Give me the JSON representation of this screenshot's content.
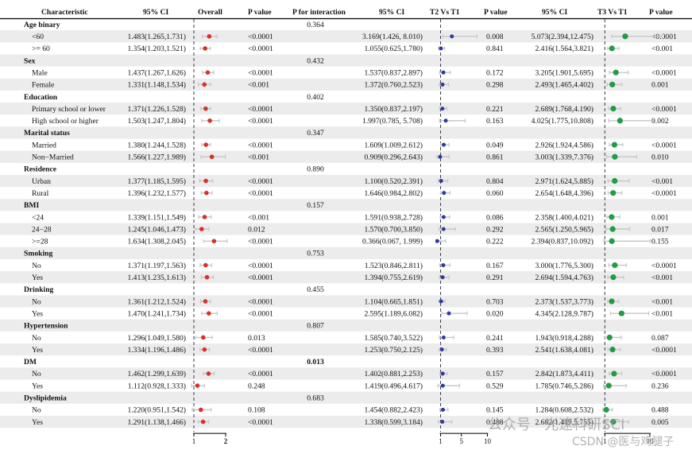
{
  "chart_data": {
    "type": "forest",
    "title": "",
    "headers": {
      "characteristic": "Characteristic",
      "ci_overall": "95% CI",
      "overall": "Overall",
      "p_overall": "P value",
      "p_interaction": "P for interaction",
      "ci_t2": "95% CI",
      "t2": "T2 Vs T1",
      "p_t2": "P value",
      "ci_t3": "95% CI",
      "t3": "T3 Vs T1",
      "p_t3": "P value"
    },
    "axes": {
      "overall": {
        "reference": 1,
        "ticks": [
          1,
          2
        ],
        "range": [
          0.85,
          2.4
        ]
      },
      "t2": {
        "reference": 1,
        "ticks": [
          1,
          5,
          10
        ],
        "range": [
          0,
          11
        ]
      },
      "t3": {
        "reference": 1,
        "ticks": [
          1,
          10
        ],
        "range": [
          0,
          13.5
        ]
      }
    },
    "colors": {
      "overall": "#d9302c",
      "t2": "#2f3a9c",
      "t3": "#1f9c46",
      "ci": "#c6c6cc",
      "reference": "#3a3a4a",
      "stripe": "#ececec"
    },
    "rows": [
      {
        "label": "Age binary",
        "group": true,
        "p_interaction": "0.364"
      },
      {
        "label": "<60",
        "ci": "1.483(1.265,1.731)",
        "est": 1.483,
        "lo": 1.265,
        "hi": 1.731,
        "p": "<0.0001",
        "t2_ci": "3.169(1.426, 8.010)",
        "t2_est": 3.169,
        "t2_lo": 1.426,
        "t2_hi": 8.01,
        "t2_p": "0.008",
        "t3_ci": "5.073(2.394,12.475)",
        "t3_est": 5.073,
        "t3_lo": 2.394,
        "t3_hi": 12.475,
        "t3_p": "<0.0001"
      },
      {
        "label": ">= 60",
        "ci": "1.354(1.203,1.521)",
        "est": 1.354,
        "lo": 1.203,
        "hi": 1.521,
        "p": "<0.0001",
        "t2_ci": "1.055(0.625,1.780)",
        "t2_est": 1.055,
        "t2_lo": 0.625,
        "t2_hi": 1.78,
        "t2_p": "0.841",
        "t3_ci": "2.416(1.564,3.821)",
        "t3_est": 2.416,
        "t3_lo": 1.564,
        "t3_hi": 3.821,
        "t3_p": "<0.001"
      },
      {
        "label": "Sex",
        "group": true,
        "p_interaction": "0.432"
      },
      {
        "label": "Male",
        "ci": "1.437(1.267,1.626)",
        "est": 1.437,
        "lo": 1.267,
        "hi": 1.626,
        "p": "<0.0001",
        "t2_ci": "1.537(0.837,2.897)",
        "t2_est": 1.537,
        "t2_lo": 0.837,
        "t2_hi": 2.897,
        "t2_p": "0.172",
        "t3_ci": "3.205(1.901,5.695)",
        "t3_est": 3.205,
        "t3_lo": 1.901,
        "t3_hi": 5.695,
        "t3_p": "<0.0001"
      },
      {
        "label": "Female",
        "ci": "1.331(1.148,1.534)",
        "est": 1.331,
        "lo": 1.148,
        "hi": 1.534,
        "p": "<0.001",
        "t2_ci": "1.372(0.760,2.523)",
        "t2_est": 1.372,
        "t2_lo": 0.76,
        "t2_hi": 2.523,
        "t2_p": "0.298",
        "t3_ci": "2.493(1.465,4.402)",
        "t3_est": 2.493,
        "t3_lo": 1.465,
        "t3_hi": 4.402,
        "t3_p": "0.001"
      },
      {
        "label": "Education",
        "group": true,
        "p_interaction": "0.402"
      },
      {
        "label": "Primary school or lower",
        "ci": "1.371(1.226,1.528)",
        "est": 1.371,
        "lo": 1.226,
        "hi": 1.528,
        "p": "<0.0001",
        "t2_ci": "1.350(0.837,2.197)",
        "t2_est": 1.35,
        "t2_lo": 0.837,
        "t2_hi": 2.197,
        "t2_p": "0.221",
        "t3_ci": "2.689(1.768,4.190)",
        "t3_est": 2.689,
        "t3_lo": 1.768,
        "t3_hi": 4.19,
        "t3_p": "<0.0001"
      },
      {
        "label": "High school or higher",
        "ci": "1.503(1.247,1.804)",
        "est": 1.503,
        "lo": 1.247,
        "hi": 1.804,
        "p": "<0.0001",
        "t2_ci": "1.997(0.785, 5.708)",
        "t2_est": 1.997,
        "t2_lo": 0.785,
        "t2_hi": 5.708,
        "t2_p": "0.163",
        "t3_ci": "4.025(1.775,10.808)",
        "t3_est": 4.025,
        "t3_lo": 1.775,
        "t3_hi": 10.808,
        "t3_p": "0.002"
      },
      {
        "label": "Marital status",
        "group": true,
        "p_interaction": "0.347"
      },
      {
        "label": "Married",
        "ci": "1.380(1.244,1.528)",
        "est": 1.38,
        "lo": 1.244,
        "hi": 1.528,
        "p": "<0.0001",
        "t2_ci": "1.609(1.009,2.612)",
        "t2_est": 1.609,
        "t2_lo": 1.009,
        "t2_hi": 2.612,
        "t2_p": "0.049",
        "t3_ci": "2.926(1.924,4.586)",
        "t3_est": 2.926,
        "t3_lo": 1.924,
        "t3_hi": 4.586,
        "t3_p": "<0.0001"
      },
      {
        "label": "Non−Married",
        "ci": "1.566(1.227,1.989)",
        "est": 1.566,
        "lo": 1.227,
        "hi": 1.989,
        "p": "<0.001",
        "t2_ci": "0.909(0.296,2.643)",
        "t2_est": 0.909,
        "t2_lo": 0.296,
        "t2_hi": 2.643,
        "t2_p": "0.861",
        "t3_ci": "3.003(1.339,7.376)",
        "t3_est": 3.003,
        "t3_lo": 1.339,
        "t3_hi": 7.376,
        "t3_p": "0.010"
      },
      {
        "label": "Residence",
        "group": true,
        "p_interaction": "0.890"
      },
      {
        "label": "Urban",
        "ci": "1.377(1.185,1.595)",
        "est": 1.377,
        "lo": 1.185,
        "hi": 1.595,
        "p": "<0.0001",
        "t2_ci": "1.100(0.520,2.391)",
        "t2_est": 1.1,
        "t2_lo": 0.52,
        "t2_hi": 2.391,
        "t2_p": "0.804",
        "t3_ci": "2.971(1.624,5.885)",
        "t3_est": 2.971,
        "t3_lo": 1.624,
        "t3_hi": 5.885,
        "t3_p": "<0.001"
      },
      {
        "label": "Rural",
        "ci": "1.396(1.232,1.577)",
        "est": 1.396,
        "lo": 1.232,
        "hi": 1.577,
        "p": "<0.0001",
        "t2_ci": "1.646(0.984,2.802)",
        "t2_est": 1.646,
        "t2_lo": 0.984,
        "t2_hi": 2.802,
        "t2_p": "0.060",
        "t3_ci": "2.654(1.648,4.396)",
        "t3_est": 2.654,
        "t3_lo": 1.648,
        "t3_hi": 4.396,
        "t3_p": "<0.0001"
      },
      {
        "label": "BMI",
        "group": true,
        "p_interaction": "0.157"
      },
      {
        "label": "<24",
        "ci": "1.339(1.151,1.549)",
        "est": 1.339,
        "lo": 1.151,
        "hi": 1.549,
        "p": "<0.001",
        "t2_ci": "1.591(0.938,2.728)",
        "t2_est": 1.591,
        "t2_lo": 0.938,
        "t2_hi": 2.728,
        "t2_p": "0.086",
        "t3_ci": "2.358(1.400,4.021)",
        "t3_est": 2.358,
        "t3_lo": 1.4,
        "t3_hi": 4.021,
        "t3_p": "0.001"
      },
      {
        "label": "24−28",
        "ci": "1.245(1.046,1.473)",
        "est": 1.245,
        "lo": 1.046,
        "hi": 1.473,
        "p": "0.012",
        "t2_ci": "1.570(0.700,3.850)",
        "t2_est": 1.57,
        "t2_lo": 0.7,
        "t2_hi": 3.85,
        "t2_p": "0.292",
        "t3_ci": "2.565(1.250,5.965)",
        "t3_est": 2.565,
        "t3_lo": 1.25,
        "t3_hi": 5.965,
        "t3_p": "0.017"
      },
      {
        "label": ">=28",
        "ci": "1.634(1.308,2.045)",
        "est": 1.634,
        "lo": 1.308,
        "hi": 2.045,
        "p": "<0.0001",
        "t2_ci": "0.366(0.067, 1.999)",
        "t2_est": 0.366,
        "t2_lo": 0.067,
        "t2_hi": 1.999,
        "t2_p": "0.222",
        "t3_ci": "2.394(0.837,10.092)",
        "t3_est": 2.394,
        "t3_lo": 0.837,
        "t3_hi": 10.092,
        "t3_p": "0.155"
      },
      {
        "label": "Smoking",
        "group": true,
        "p_interaction": "0.753"
      },
      {
        "label": "No",
        "ci": "1.371(1.197,1.563)",
        "est": 1.371,
        "lo": 1.197,
        "hi": 1.563,
        "p": "<0.0001",
        "t2_ci": "1.523(0.846,2.811)",
        "t2_est": 1.523,
        "t2_lo": 0.846,
        "t2_hi": 2.811,
        "t2_p": "0.167",
        "t3_ci": "3.000(1.776,5.300)",
        "t3_est": 3.0,
        "t3_lo": 1.776,
        "t3_hi": 5.3,
        "t3_p": "<0.0001"
      },
      {
        "label": "Yes",
        "ci": "1.413(1.235,1.613)",
        "est": 1.413,
        "lo": 1.235,
        "hi": 1.613,
        "p": "<0.0001",
        "t2_ci": "1.394(0.755,2.619)",
        "t2_est": 1.394,
        "t2_lo": 0.755,
        "t2_hi": 2.619,
        "t2_p": "0.291",
        "t3_ci": "2.694(1.594,4.763)",
        "t3_est": 2.694,
        "t3_lo": 1.594,
        "t3_hi": 4.763,
        "t3_p": "<0.001"
      },
      {
        "label": "Drinking",
        "group": true,
        "p_interaction": "0.455"
      },
      {
        "label": "No",
        "ci": "1.361(1.212,1.524)",
        "est": 1.361,
        "lo": 1.212,
        "hi": 1.524,
        "p": "<0.0001",
        "t2_ci": "1.104(0.665,1.851)",
        "t2_est": 1.104,
        "t2_lo": 0.665,
        "t2_hi": 1.851,
        "t2_p": "0.703",
        "t3_ci": "2.373(1.537,3.773)",
        "t3_est": 2.373,
        "t3_lo": 1.537,
        "t3_hi": 3.773,
        "t3_p": "<0.001"
      },
      {
        "label": "Yes",
        "ci": "1.470(1.241,1.734)",
        "est": 1.47,
        "lo": 1.241,
        "hi": 1.734,
        "p": "<0.0001",
        "t2_ci": "2.595(1.189,6.082)",
        "t2_est": 2.595,
        "t2_lo": 1.189,
        "t2_hi": 6.082,
        "t2_p": "0.020",
        "t3_ci": "4.345(2.128,9.787)",
        "t3_est": 4.345,
        "t3_lo": 2.128,
        "t3_hi": 9.787,
        "t3_p": "<0.001"
      },
      {
        "label": "Hypertension",
        "group": true,
        "p_interaction": "0.807"
      },
      {
        "label": "No",
        "ci": "1.296(1.049,1.580)",
        "est": 1.296,
        "lo": 1.049,
        "hi": 1.58,
        "p": "0.013",
        "t2_ci": "1.585(0.740,3.522)",
        "t2_est": 1.585,
        "t2_lo": 0.74,
        "t2_hi": 3.522,
        "t2_p": "0.241",
        "t3_ci": "1.943(0.918,4.288)",
        "t3_est": 1.943,
        "t3_lo": 0.918,
        "t3_hi": 4.288,
        "t3_p": "0.087"
      },
      {
        "label": "Yes",
        "ci": "1.334(1.196,1.486)",
        "est": 1.334,
        "lo": 1.196,
        "hi": 1.486,
        "p": "<0.0001",
        "t2_ci": "1.253(0.750,2.125)",
        "t2_est": 1.253,
        "t2_lo": 0.75,
        "t2_hi": 2.125,
        "t2_p": "0.393",
        "t3_ci": "2.541(1.638,4.081)",
        "t3_est": 2.541,
        "t3_lo": 1.638,
        "t3_hi": 4.081,
        "t3_p": "<0.0001"
      },
      {
        "label": "DM",
        "group": true,
        "p_interaction": "0.013",
        "p_bold": true
      },
      {
        "label": "No",
        "ci": "1.462(1.299,1.639)",
        "est": 1.462,
        "lo": 1.299,
        "hi": 1.639,
        "p": "<0.0001",
        "t2_ci": "1.402(0.881,2.253)",
        "t2_est": 1.402,
        "t2_lo": 0.881,
        "t2_hi": 2.253,
        "t2_p": "0.157",
        "t3_ci": "2.842(1.873,4.411)",
        "t3_est": 2.842,
        "t3_lo": 1.873,
        "t3_hi": 4.411,
        "t3_p": "<0.0001"
      },
      {
        "label": "Yes",
        "ci": "1.112(0.928,1.333)",
        "est": 1.112,
        "lo": 0.928,
        "hi": 1.333,
        "p": "0.248",
        "t2_ci": "1.419(0.496,4.617)",
        "t2_est": 1.419,
        "t2_lo": 0.496,
        "t2_hi": 4.617,
        "t2_p": "0.529",
        "t3_ci": "1.785(0.746,5.286)",
        "t3_est": 1.785,
        "t3_lo": 0.746,
        "t3_hi": 5.286,
        "t3_p": "0.236"
      },
      {
        "label": "Dyslipidemia",
        "group": true,
        "p_interaction": "0.683"
      },
      {
        "label": "No",
        "ci": "1.220(0.951,1.542)",
        "est": 1.22,
        "lo": 0.951,
        "hi": 1.542,
        "p": "0.108",
        "t2_ci": "1.454(0.882,2.423)",
        "t2_est": 1.454,
        "t2_lo": 0.882,
        "t2_hi": 2.423,
        "t2_p": "0.145",
        "t3_ci": "1.284(0.608,2.532)",
        "t3_est": 1.284,
        "t3_lo": 0.608,
        "t3_hi": 2.532,
        "t3_p": "0.488"
      },
      {
        "label": "Yes",
        "ci": "1.291(1.138,1.466)",
        "est": 1.291,
        "lo": 1.138,
        "hi": 1.466,
        "p": "<0.0001",
        "t2_ci": "1.338(0.599,3.184)",
        "t2_est": 1.338,
        "t2_lo": 0.599,
        "t2_hi": 3.184,
        "t2_p": "0.488",
        "t3_ci": "2.682(1.419,5.755)",
        "t3_est": 2.682,
        "t3_lo": 1.419,
        "t3_hi": 5.755,
        "t3_p": "0.005"
      }
    ]
  },
  "watermarks": {
    "primary": "公众号 · 光速科研SCI",
    "secondary": "CSDN @医与鸡腿子"
  }
}
